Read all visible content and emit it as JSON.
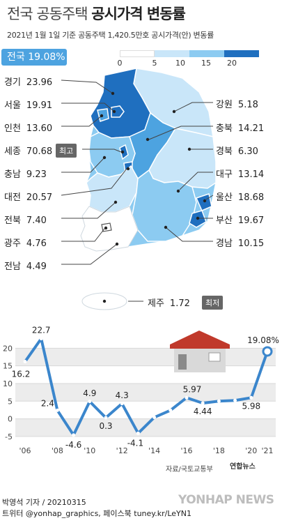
{
  "title_light": "전국 공동주택",
  "title_bold": "공시가격 변동률",
  "subtitle": "2021년 1월 1일 기준 공동주택 1,420.5만호 공시가격(안) 변동률",
  "national": "전국 19.08%",
  "legend": {
    "ticks": [
      "0",
      "5",
      "10",
      "15",
      "20"
    ],
    "colors": [
      "#ffffff",
      "#c9e6f9",
      "#8ccbf1",
      "#4da3e0",
      "#1f6fbf"
    ]
  },
  "regions": [
    {
      "name": "경기",
      "value": "23.96"
    },
    {
      "name": "서울",
      "value": "19.91"
    },
    {
      "name": "인천",
      "value": "13.60"
    },
    {
      "name": "세종",
      "value": "70.68"
    },
    {
      "name": "충남",
      "value": "9.23"
    },
    {
      "name": "대전",
      "value": "20.57"
    },
    {
      "name": "전북",
      "value": "7.40"
    },
    {
      "name": "광주",
      "value": "4.76"
    },
    {
      "name": "전남",
      "value": "4.49"
    },
    {
      "name": "강원",
      "value": "5.18"
    },
    {
      "name": "충북",
      "value": "14.21"
    },
    {
      "name": "경북",
      "value": "6.30"
    },
    {
      "name": "대구",
      "value": "13.14"
    },
    {
      "name": "울산",
      "value": "18.68"
    },
    {
      "name": "부산",
      "value": "19.67"
    },
    {
      "name": "경남",
      "value": "10.15"
    },
    {
      "name": "제주",
      "value": "1.72"
    }
  ],
  "badges": {
    "max": "최고",
    "min": "최저"
  },
  "chart_data": {
    "type": "line",
    "x": [
      2006,
      2007,
      2008,
      2009,
      2010,
      2011,
      2012,
      2013,
      2014,
      2015,
      2016,
      2017,
      2018,
      2019,
      2020,
      2021
    ],
    "values": [
      16.2,
      22.7,
      2.4,
      -4.6,
      4.9,
      0.3,
      4.3,
      -4.1,
      0.4,
      2.4,
      5.97,
      4.44,
      5.0,
      5.2,
      5.98,
      19.08
    ],
    "labels": {
      "2006": "16.2",
      "2007": "22.7",
      "2008": "2.4",
      "2009": "-4.6",
      "2010": "4.9",
      "2011": "0.3",
      "2012": "4.3",
      "2013": "-4.1",
      "2016": "5.97",
      "2017": "4.44",
      "2020": "5.98",
      "2021": "19.08%"
    },
    "x_tick_labels": [
      "'06",
      "'08",
      "'10",
      "'12",
      "'14",
      "'16",
      "'18",
      "'20",
      "'21"
    ],
    "x_tick_years": [
      2006,
      2008,
      2010,
      2012,
      2014,
      2016,
      2018,
      2020,
      2021
    ],
    "y_ticks": [
      20,
      15,
      10,
      5,
      0,
      -5
    ],
    "ylim": [
      -7,
      25
    ],
    "grid": true,
    "color": "#3b86cc"
  },
  "source": "자료/국토교통부",
  "agency": "연합뉴스",
  "credit_line1": "박영석 기자 / 20210315",
  "credit_line2": "트위터 @yonhap_graphics, 페이스북 tuney.kr/LeYN1",
  "watermark": "YONHAP NEWS"
}
